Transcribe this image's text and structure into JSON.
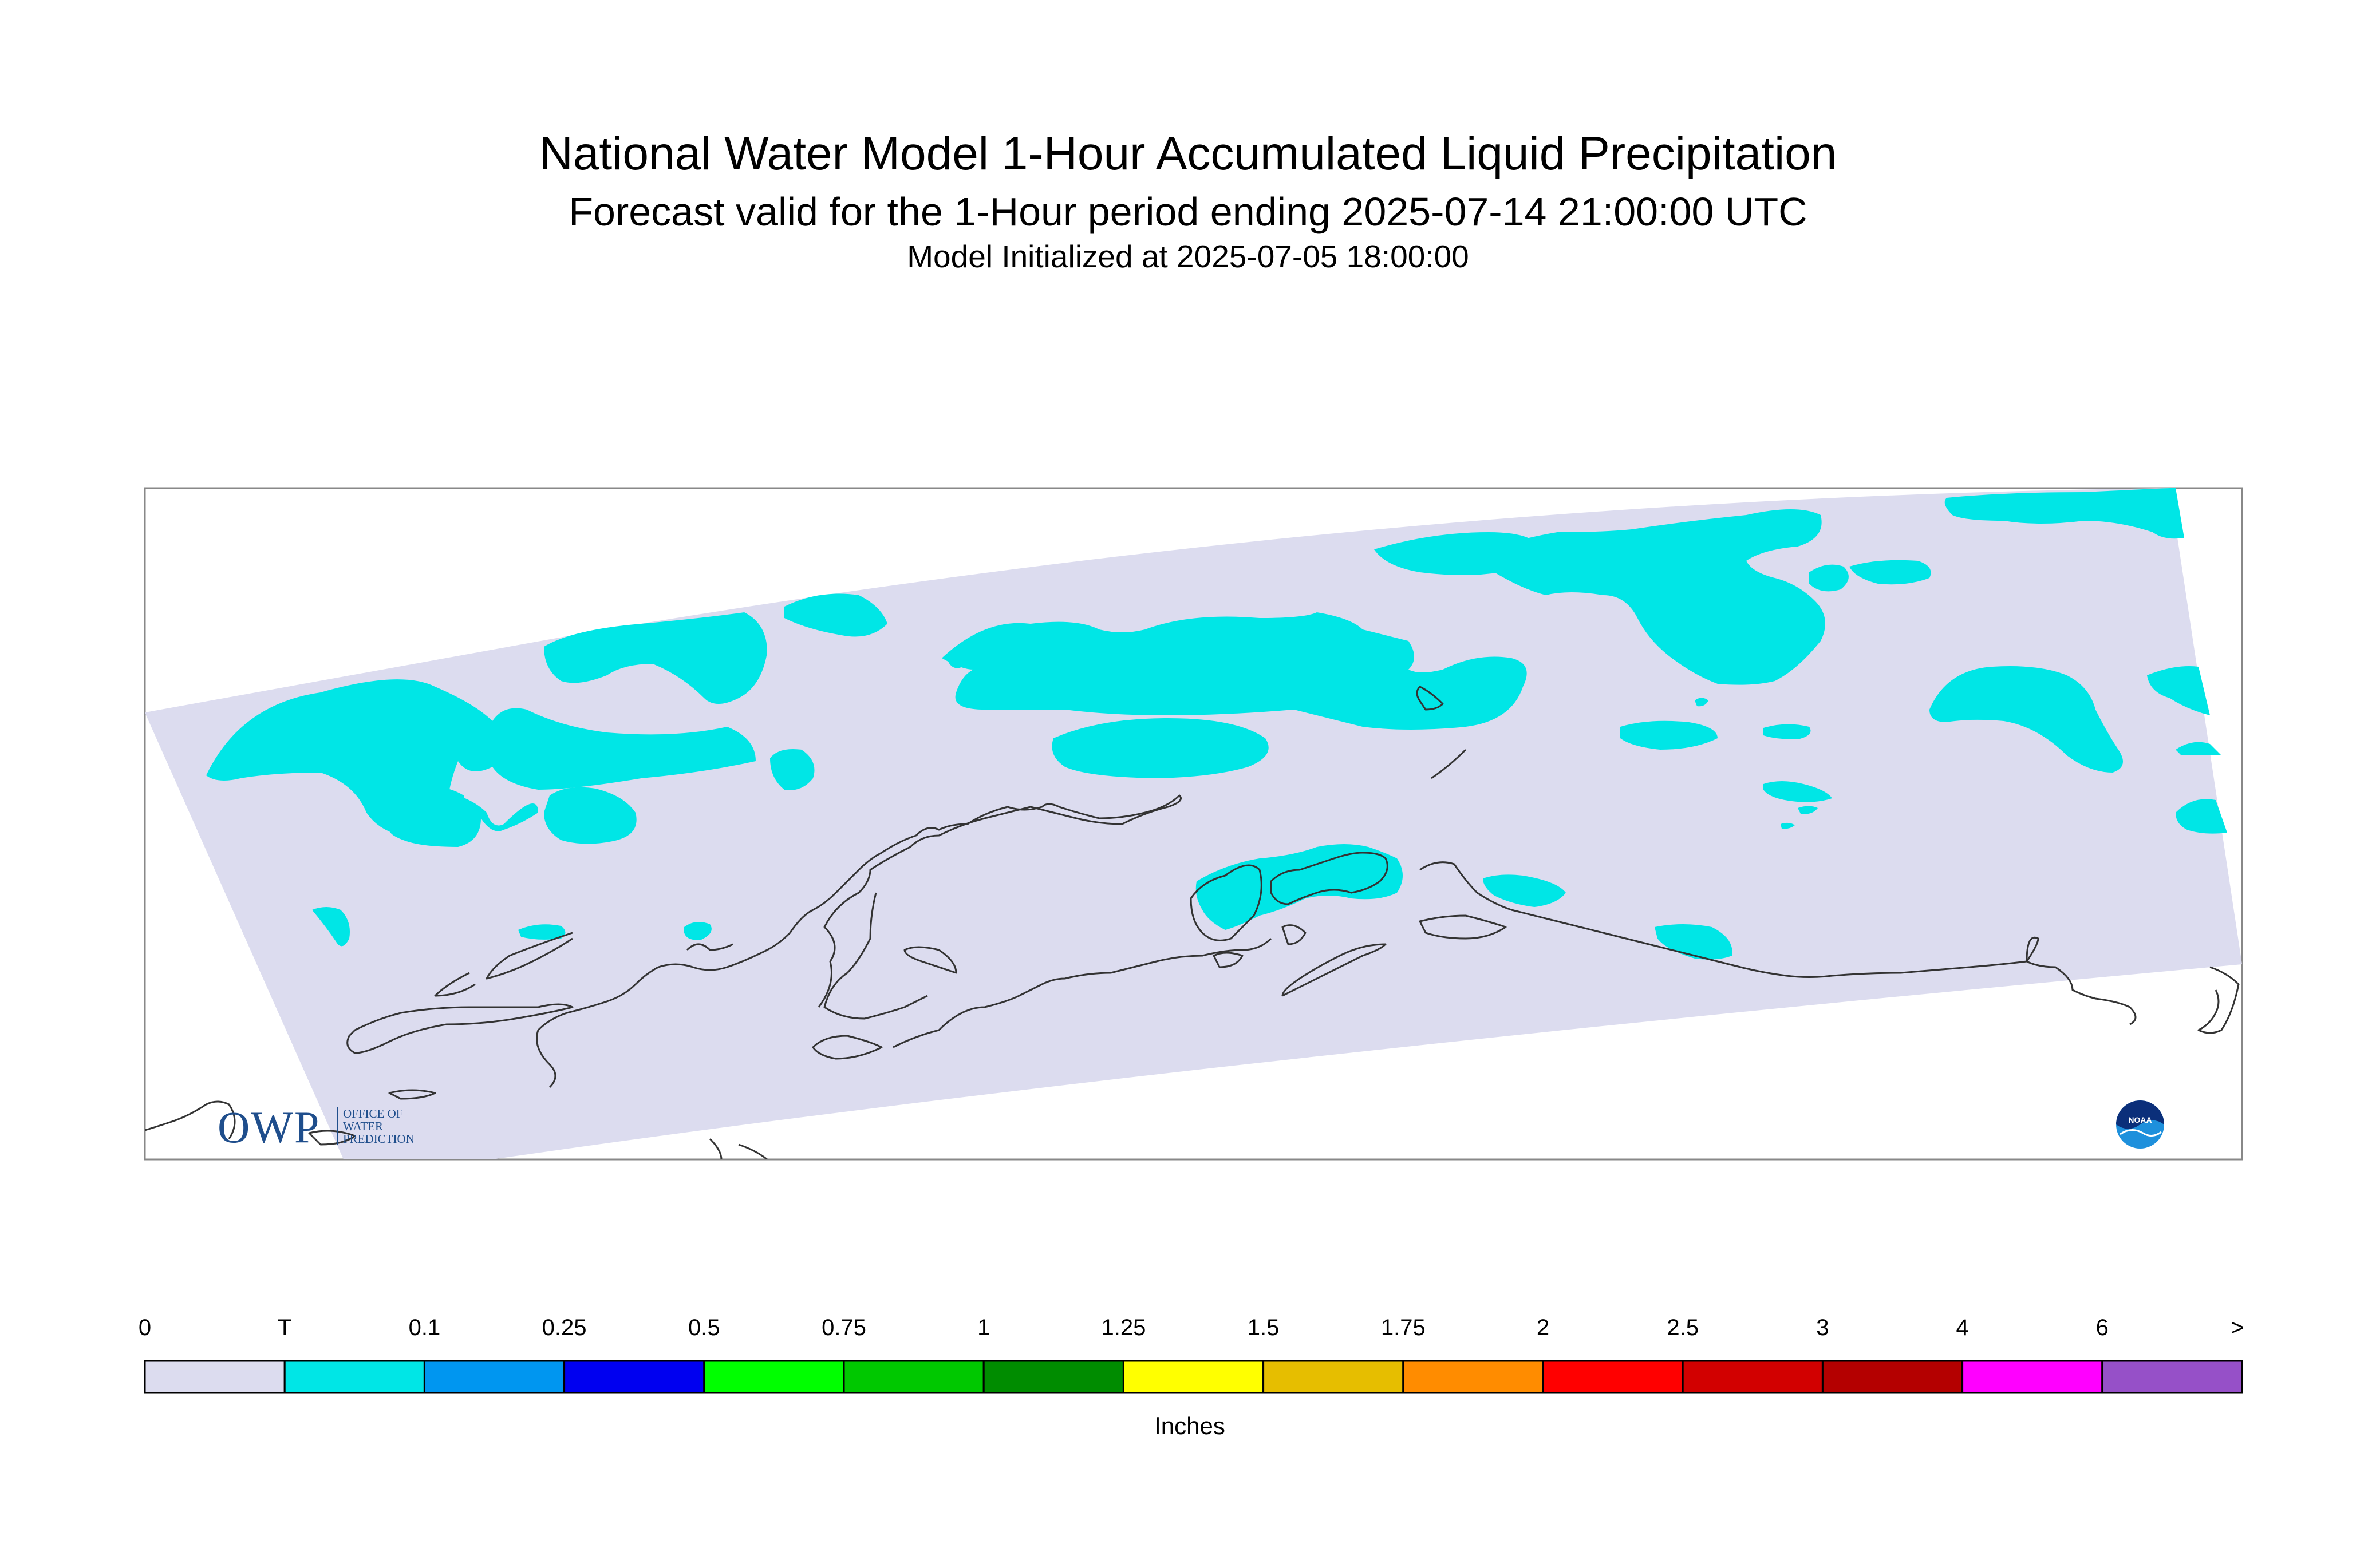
{
  "title": "National Water Model 1-Hour Accumulated Liquid Precipitation",
  "subtitle": "Forecast valid for the 1-Hour period ending 2025-07-14 21:00:00 UTC",
  "init_line": "Model Initialized at 2025-07-05 18:00:00",
  "colorbar": {
    "unit_label": "Inches",
    "tick_labels": [
      "0",
      "T",
      "0.1",
      "0.25",
      "0.5",
      "0.75",
      "1",
      "1.25",
      "1.5",
      "1.75",
      "2",
      "2.5",
      "3",
      "4",
      "6",
      ">"
    ],
    "colors": [
      "#dcdcef",
      "#00e6e6",
      "#0096f0",
      "#0000f0",
      "#00ff00",
      "#00c800",
      "#008c00",
      "#ffff00",
      "#e6be00",
      "#ff8c00",
      "#ff0000",
      "#d20000",
      "#b40000",
      "#ff00ff",
      "#9650c8"
    ]
  },
  "map": {
    "background_color": "#dcdcef",
    "precip_color": "#00e6e6",
    "coastline_color": "#333333",
    "legend_category_shown": "T"
  },
  "logos": {
    "owp_text": "OWP",
    "owp_subtext": [
      "OFFICE OF",
      "WATER",
      "PREDICTION"
    ],
    "noaa_text": "NOAA"
  }
}
